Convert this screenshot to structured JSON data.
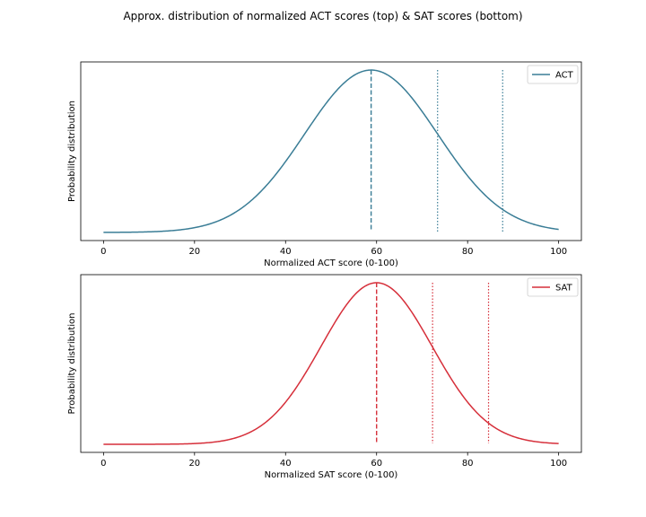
{
  "title": "Approx. distribution of normalized ACT scores (top) & SAT scores (bottom)",
  "chart_data": [
    {
      "type": "line",
      "xlabel": "Normalized ACT score (0-100)",
      "ylabel": "Probability distribution",
      "xlim": [
        -5,
        105
      ],
      "xticks": [
        0,
        20,
        40,
        60,
        80,
        100
      ],
      "yticks": [],
      "grid": false,
      "legend": "upper right",
      "series": [
        {
          "name": "ACT",
          "color": "#3a7d96",
          "distribution": "normal",
          "mean": 58.8,
          "std": 14.6,
          "x_range": [
            0,
            100
          ]
        }
      ],
      "vlines": [
        {
          "x": 58.8,
          "style": "dashed",
          "color": "#3a7d96"
        },
        {
          "x": 73.4,
          "style": "dotted",
          "color": "#3a7d96"
        },
        {
          "x": 87.7,
          "style": "dotted",
          "color": "#3a7d96"
        }
      ]
    },
    {
      "type": "line",
      "xlabel": "Normalized SAT score (0-100)",
      "ylabel": "Probability distribution",
      "xlim": [
        -5,
        105
      ],
      "xticks": [
        0,
        20,
        40,
        60,
        80,
        100
      ],
      "yticks": [],
      "grid": false,
      "legend": "upper right",
      "series": [
        {
          "name": "SAT",
          "color": "#d62f3a",
          "distribution": "normal",
          "mean": 60.0,
          "std": 12.2,
          "x_range": [
            0,
            100
          ]
        }
      ],
      "vlines": [
        {
          "x": 60.0,
          "style": "dashed",
          "color": "#d62f3a"
        },
        {
          "x": 72.3,
          "style": "dotted",
          "color": "#d62f3a"
        },
        {
          "x": 84.6,
          "style": "dotted",
          "color": "#d62f3a"
        }
      ]
    }
  ]
}
